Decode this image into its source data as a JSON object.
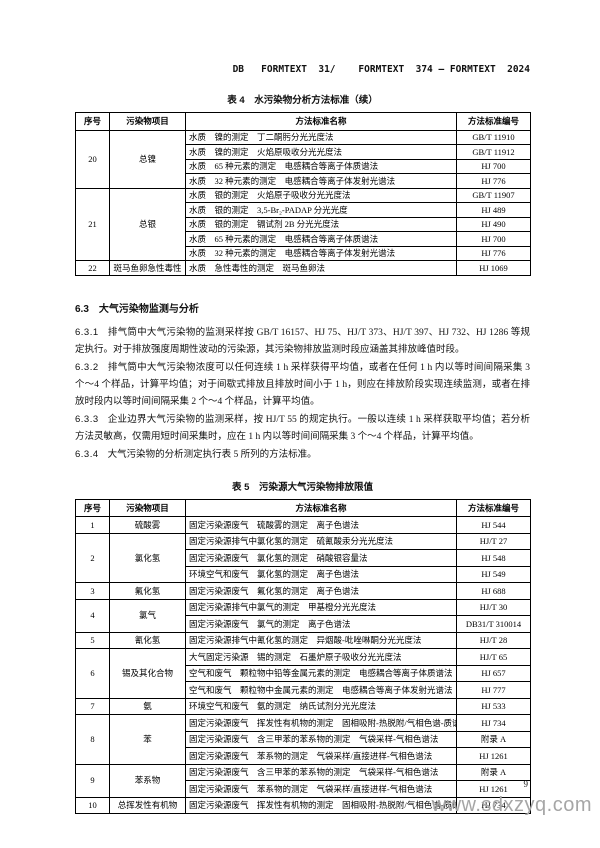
{
  "page": {
    "header": "DB   FORMTEXT  31/    FORMTEXT  374 — FORMTEXT  2024",
    "page_number": "9",
    "watermark": "www.sdxzyq.com"
  },
  "table4": {
    "caption": "表 4　水污染物分析方法标准（续）",
    "headers": [
      "序号",
      "污染物项目",
      "方法标准名称",
      "方法标准编号"
    ],
    "groups": [
      {
        "no": "20",
        "item": "总镍",
        "methods": [
          {
            "name": "水质　镍的测定　丁二酮肟分光光度法",
            "code": "GB/T 11910"
          },
          {
            "name": "水质　镍的测定　火焰原吸收分光光度法",
            "code": "GB/T 11912"
          },
          {
            "name": "水质　65 种元素的测定　电感耦合等离子体质谱法",
            "code": "HJ 700"
          },
          {
            "name": "水质　32 种元素的测定　电感耦合等离子体发射光谱法",
            "code": "HJ 776"
          }
        ]
      },
      {
        "no": "21",
        "item": "总银",
        "methods": [
          {
            "name": "水质　银的测定　火焰原子吸收分光光度法",
            "code": "GB/T 11907"
          },
          {
            "name": "水质　银的测定　3,5-Br₂-PADAP 分光光度",
            "code": "HJ 489"
          },
          {
            "name": "水质　银的测定　镉试剂 2B 分光光度法",
            "code": "HJ 490"
          },
          {
            "name": "水质　65 种元素的测定　电感耦合等离子体质谱法",
            "code": "HJ 700"
          },
          {
            "name": "水质　32 种元素的测定　电感耦合等离子体发射光谱法",
            "code": "HJ 776"
          }
        ]
      },
      {
        "no": "22",
        "item": "斑马鱼卵急性毒性",
        "methods": [
          {
            "name": "水质　急性毒性的测定　斑马鱼卵法",
            "code": "HJ 1069"
          }
        ]
      }
    ]
  },
  "section": {
    "heading": "6.3　大气污染物监测与分析",
    "clauses": [
      {
        "no": "6.3.1",
        "text": "排气筒中大气污染物的监测采样按 GB/T 16157、HJ 75、HJ/T 373、HJ/T 397、HJ 732、HJ 1286 等规定执行。对于排放强度周期性波动的污染源，其污染物排放监测时段应涵盖其排放峰值时段。"
      },
      {
        "no": "6.3.2",
        "text": "排气筒中大气污染物浓度可以任何连续 1 h 采样获得平均值，或者在任何 1 h 内以等时间间隔采集 3 个～4 个样品，计算平均值；对于间歇式排放且排放时间小于 1 h，则应在排放阶段实现连续监测，或者在排放时段内以等时间间隔采集 2 个～4 个样品，计算平均值。"
      },
      {
        "no": "6.3.3",
        "text": "企业边界大气污染物的监测采样，按 HJ/T 55 的规定执行。一般以连续 1 h 采样获取平均值；若分析方法灵敏高，仅需用短时间采集时，应在 1 h 内以等时间间隔采集 3 个～4 个样品，计算平均值。"
      },
      {
        "no": "6.3.4",
        "text": "大气污染物的分析测定执行表 5 所列的方法标准。"
      }
    ]
  },
  "table5": {
    "caption": "表 5　污染源大气污染物排放限值",
    "headers": [
      "序号",
      "污染物项目",
      "方法标准名称",
      "方法标准编号"
    ],
    "groups": [
      {
        "no": "1",
        "item": "硫酸雾",
        "methods": [
          {
            "name": "固定污染源废气　硫酸雾的测定　离子色谱法",
            "code": "HJ 544"
          }
        ]
      },
      {
        "no": "2",
        "item": "氯化氢",
        "methods": [
          {
            "name": "固定污染源排气中氯化氢的测定　硫氰酸汞分光光度法",
            "code": "HJ/T 27"
          },
          {
            "name": "固定污染源废气　氯化氢的测定　硝酸银容量法",
            "code": "HJ 548"
          },
          {
            "name": "环境空气和废气　氯化氢的测定　离子色谱法",
            "code": "HJ 549"
          }
        ]
      },
      {
        "no": "3",
        "item": "氟化氢",
        "methods": [
          {
            "name": "固定污染源废气　氟化氢的测定　离子色谱法",
            "code": "HJ 688"
          }
        ]
      },
      {
        "no": "4",
        "item": "氯气",
        "methods": [
          {
            "name": "固定污染源排气中氯气的测定　甲基橙分光光度法",
            "code": "HJ/T 30"
          },
          {
            "name": "固定污染源废气　氯气的测定　离子色谱法",
            "code": "DB31/T 310014"
          }
        ]
      },
      {
        "no": "5",
        "item": "氰化氢",
        "methods": [
          {
            "name": "固定污染源排气中氰化氢的测定　异烟酸-吡唑啉酮分光光度法",
            "code": "HJ/T 28"
          }
        ]
      },
      {
        "no": "6",
        "item": "锡及其化合物",
        "methods": [
          {
            "name": "大气固定污染源　锡的测定　石墨炉原子吸收分光光度法",
            "code": "HJ/T 65"
          },
          {
            "name": "空气和废气　颗粒物中铅等金属元素的测定　电感耦合等离子体质谱法",
            "code": "HJ 657"
          },
          {
            "name": "空气和废气　颗粒物中金属元素的测定　电感耦合等离子体发射光谱法",
            "code": "HJ 777"
          }
        ]
      },
      {
        "no": "7",
        "item": "氨",
        "methods": [
          {
            "name": "环境空气和废气　氨的测定　纳氏试剂分光光度法",
            "code": "HJ 533"
          }
        ]
      },
      {
        "no": "8",
        "item": "苯",
        "methods": [
          {
            "name": "固定污染源废气　挥发性有机物的测定　固相吸附-热脱附/气相色谱-质谱法",
            "code": "HJ 734"
          },
          {
            "name": "固定污染源废气　含三甲苯的苯系物的测定　气袋采样-气相色谱法",
            "code": "附录 A"
          },
          {
            "name": "固定污染源废气　苯系物的测定　气袋采样/直接进样-气相色谱法",
            "code": "HJ 1261"
          }
        ]
      },
      {
        "no": "9",
        "item": "苯系物",
        "methods": [
          {
            "name": "固定污染源废气　含三甲苯的苯系物的测定　气袋采样-气相色谱法",
            "code": "附录 A"
          },
          {
            "name": "固定污染源废气　苯系物的测定　气袋采样/直接进样-气相色谱法",
            "code": "HJ 1261"
          }
        ]
      },
      {
        "no": "10",
        "item": "总挥发性有机物",
        "methods": [
          {
            "name": "固定污染源废气　挥发性有机物的测定　固相吸附-热脱附/气相色谱-质谱法",
            "code": "HJ 734"
          }
        ]
      }
    ]
  }
}
